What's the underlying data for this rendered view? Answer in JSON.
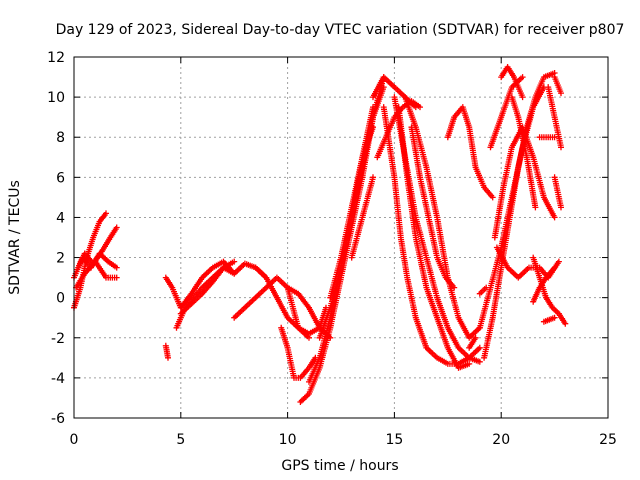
{
  "chart_data": {
    "type": "scatter",
    "title": "Day 129 of 2023, Sidereal Day-to-day VTEC variation (SDTVAR) for receiver p807",
    "xlabel": "GPS time / hours",
    "ylabel": "SDTVAR / TECUs",
    "xlim": [
      0,
      25
    ],
    "ylim": [
      -6,
      12
    ],
    "x_ticks": [
      0,
      5,
      10,
      15,
      20,
      25
    ],
    "y_ticks": [
      -6,
      -4,
      -2,
      0,
      2,
      4,
      6,
      8,
      10,
      12
    ],
    "grid": true,
    "legend": "none",
    "marker": "plus",
    "color": "#ff0000",
    "tracks": [
      {
        "x": [
          0.0,
          0.3,
          0.6,
          0.9,
          1.2,
          1.5
        ],
        "y": [
          -0.5,
          0.5,
          2.0,
          3.0,
          3.8,
          4.2
        ]
      },
      {
        "x": [
          0.0,
          0.4,
          0.8,
          1.2,
          1.6,
          2.0
        ],
        "y": [
          1.0,
          2.0,
          1.5,
          2.2,
          1.8,
          1.5
        ]
      },
      {
        "x": [
          0.1,
          0.5,
          1.0,
          1.5,
          2.0
        ],
        "y": [
          0.5,
          1.2,
          1.8,
          1.0,
          1.0
        ]
      },
      {
        "x": [
          0.2,
          0.5,
          0.9,
          1.3,
          1.7,
          2.0
        ],
        "y": [
          1.5,
          2.2,
          1.7,
          2.3,
          3.0,
          3.5
        ]
      },
      {
        "x": [
          4.3,
          4.4
        ],
        "y": [
          -2.4,
          -3.0
        ]
      },
      {
        "x": [
          4.3,
          4.6,
          5.0,
          5.5,
          6.0,
          6.5,
          7.0,
          7.5
        ],
        "y": [
          1.0,
          0.5,
          -0.5,
          0.2,
          1.0,
          1.5,
          1.8,
          1.2
        ]
      },
      {
        "x": [
          4.8,
          5.2,
          5.6,
          6.0,
          6.5,
          7.0
        ],
        "y": [
          -1.5,
          -0.5,
          0.0,
          0.5,
          1.0,
          1.5
        ]
      },
      {
        "x": [
          5.0,
          5.5,
          6.0,
          6.5,
          7.0,
          7.5
        ],
        "y": [
          -0.8,
          -0.3,
          0.2,
          0.8,
          1.5,
          1.8
        ]
      },
      {
        "x": [
          7.0,
          7.5,
          8.0,
          8.5,
          9.0
        ],
        "y": [
          1.5,
          1.2,
          1.7,
          1.5,
          1.0
        ]
      },
      {
        "x": [
          7.5,
          8.0,
          8.5,
          9.0,
          9.5,
          10.0,
          10.5,
          11.0
        ],
        "y": [
          -1.0,
          -0.5,
          0.0,
          0.5,
          1.0,
          0.5,
          -1.5,
          -2.0
        ]
      },
      {
        "x": [
          8.5,
          9.0,
          9.5,
          10.0,
          10.5,
          11.0,
          11.5,
          11.8
        ],
        "y": [
          1.5,
          1.0,
          0.0,
          -1.0,
          -1.5,
          -1.8,
          -1.5,
          -0.5
        ]
      },
      {
        "x": [
          9.7,
          10.0,
          10.3,
          10.6,
          11.0,
          11.3
        ],
        "y": [
          -1.5,
          -2.5,
          -4.0,
          -4.0,
          -3.5,
          -3.0
        ]
      },
      {
        "x": [
          10.0,
          10.5,
          11.0,
          11.5,
          12.0
        ],
        "y": [
          0.5,
          0.2,
          -0.5,
          -1.5,
          -2.0
        ]
      },
      {
        "x": [
          10.6,
          11.0,
          11.5,
          12.0,
          12.5,
          13.0,
          13.5,
          14.0,
          14.5
        ],
        "y": [
          -5.2,
          -4.8,
          -3.5,
          -1.5,
          1.0,
          3.5,
          6.0,
          9.0,
          10.5
        ]
      },
      {
        "x": [
          11.0,
          11.5,
          12.0,
          12.5,
          13.0,
          13.5,
          14.0,
          14.5
        ],
        "y": [
          -4.2,
          -3.0,
          -1.0,
          1.5,
          4.0,
          6.5,
          9.0,
          11.0
        ]
      },
      {
        "x": [
          11.5,
          12.0,
          12.5,
          13.0,
          13.5,
          14.0
        ],
        "y": [
          -2.0,
          -0.5,
          1.5,
          4.0,
          7.0,
          9.5
        ]
      },
      {
        "x": [
          12.0,
          12.5,
          13.0,
          13.5,
          14.0
        ],
        "y": [
          0.0,
          2.0,
          4.5,
          7.0,
          8.5
        ]
      },
      {
        "x": [
          13.0,
          13.5,
          14.0
        ],
        "y": [
          2.0,
          4.0,
          6.0
        ]
      },
      {
        "x": [
          14.0,
          14.5,
          15.0,
          15.5,
          16.0
        ],
        "y": [
          10.0,
          11.0,
          10.5,
          10.0,
          9.5
        ]
      },
      {
        "x": [
          14.2,
          14.6,
          15.0,
          15.4,
          15.8,
          16.2
        ],
        "y": [
          7.0,
          8.0,
          9.0,
          9.5,
          9.8,
          9.5
        ]
      },
      {
        "x": [
          14.5,
          15.0,
          15.3,
          15.6,
          16.0,
          16.5,
          17.0,
          17.5,
          18.0,
          18.5,
          19.0
        ],
        "y": [
          9.5,
          6.0,
          3.0,
          1.0,
          -1.0,
          -2.5,
          -3.0,
          -3.3,
          -3.3,
          -3.0,
          -2.5
        ]
      },
      {
        "x": [
          15.0,
          15.5,
          16.0,
          16.5,
          17.0,
          17.5,
          18.0,
          18.5,
          19.0
        ],
        "y": [
          10.0,
          7.0,
          4.0,
          2.0,
          0.0,
          -1.5,
          -2.5,
          -3.0,
          -3.2
        ]
      },
      {
        "x": [
          15.2,
          15.6,
          16.0,
          16.5,
          17.0,
          17.5,
          18.0,
          18.5
        ],
        "y": [
          9.5,
          6.0,
          3.0,
          0.5,
          -1.0,
          -2.5,
          -3.5,
          -3.3
        ]
      },
      {
        "x": [
          15.5,
          16.0,
          16.5,
          17.0,
          17.5,
          18.0,
          18.5,
          19.0
        ],
        "y": [
          10.0,
          8.5,
          6.5,
          4.0,
          1.0,
          -1.0,
          -2.0,
          -1.5
        ]
      },
      {
        "x": [
          15.8,
          16.2,
          16.6,
          17.0,
          17.4,
          17.8
        ],
        "y": [
          8.5,
          6.0,
          4.0,
          2.0,
          1.0,
          0.5
        ]
      },
      {
        "x": [
          17.5,
          17.8,
          18.2,
          18.5,
          18.8,
          19.2,
          19.6
        ],
        "y": [
          8.0,
          9.0,
          9.5,
          8.5,
          6.5,
          5.5,
          5.0
        ]
      },
      {
        "x": [
          18.5,
          18.8
        ],
        "y": [
          -2.5,
          -2.0
        ]
      },
      {
        "x": [
          19.0,
          19.3
        ],
        "y": [
          0.2,
          0.5
        ]
      },
      {
        "x": [
          19.0,
          19.5,
          20.0,
          20.5,
          21.0,
          21.5,
          22.0
        ],
        "y": [
          -1.5,
          0.5,
          2.5,
          5.0,
          7.5,
          9.5,
          10.5
        ]
      },
      {
        "x": [
          19.2,
          19.6,
          20.0,
          20.4,
          20.8,
          21.2,
          21.6,
          22.0,
          22.5
        ],
        "y": [
          -3.0,
          -1.0,
          1.5,
          4.0,
          6.5,
          8.5,
          10.0,
          11.0,
          11.2
        ]
      },
      {
        "x": [
          19.5,
          20.0,
          20.5,
          21.0
        ],
        "y": [
          7.5,
          9.0,
          10.5,
          11.0
        ]
      },
      {
        "x": [
          19.7,
          20.1,
          20.5,
          21.0,
          21.5,
          22.0,
          22.5
        ],
        "y": [
          3.0,
          5.5,
          7.5,
          8.5,
          7.0,
          5.0,
          4.0
        ]
      },
      {
        "x": [
          20.0,
          20.3,
          20.6,
          21.0
        ],
        "y": [
          11.0,
          11.5,
          11.0,
          10.0
        ]
      },
      {
        "x": [
          20.5,
          20.8,
          21.2,
          21.6
        ],
        "y": [
          10.0,
          9.0,
          7.0,
          4.5
        ]
      },
      {
        "x": [
          19.8,
          20.3,
          20.8,
          21.3,
          21.8,
          22.2,
          22.7
        ],
        "y": [
          2.5,
          1.5,
          1.0,
          1.5,
          1.5,
          1.0,
          1.8
        ]
      },
      {
        "x": [
          21.5,
          21.8,
          22.1,
          22.4,
          22.7,
          23.0
        ],
        "y": [
          2.0,
          1.0,
          0.0,
          -0.5,
          -0.8,
          -1.3
        ]
      },
      {
        "x": [
          21.5,
          21.8,
          22.1,
          22.5
        ],
        "y": [
          -0.2,
          0.5,
          1.0,
          1.5
        ]
      },
      {
        "x": [
          21.8,
          22.1,
          22.5
        ],
        "y": [
          8.0,
          8.0,
          8.0
        ]
      },
      {
        "x": [
          22.0,
          22.5
        ],
        "y": [
          -1.2,
          -1.0
        ]
      },
      {
        "x": [
          22.2,
          22.5,
          22.8
        ],
        "y": [
          10.5,
          9.0,
          7.5
        ]
      },
      {
        "x": [
          22.5,
          22.8
        ],
        "y": [
          6.0,
          4.5
        ]
      },
      {
        "x": [
          22.5,
          22.8
        ],
        "y": [
          11.0,
          10.2
        ]
      }
    ]
  }
}
